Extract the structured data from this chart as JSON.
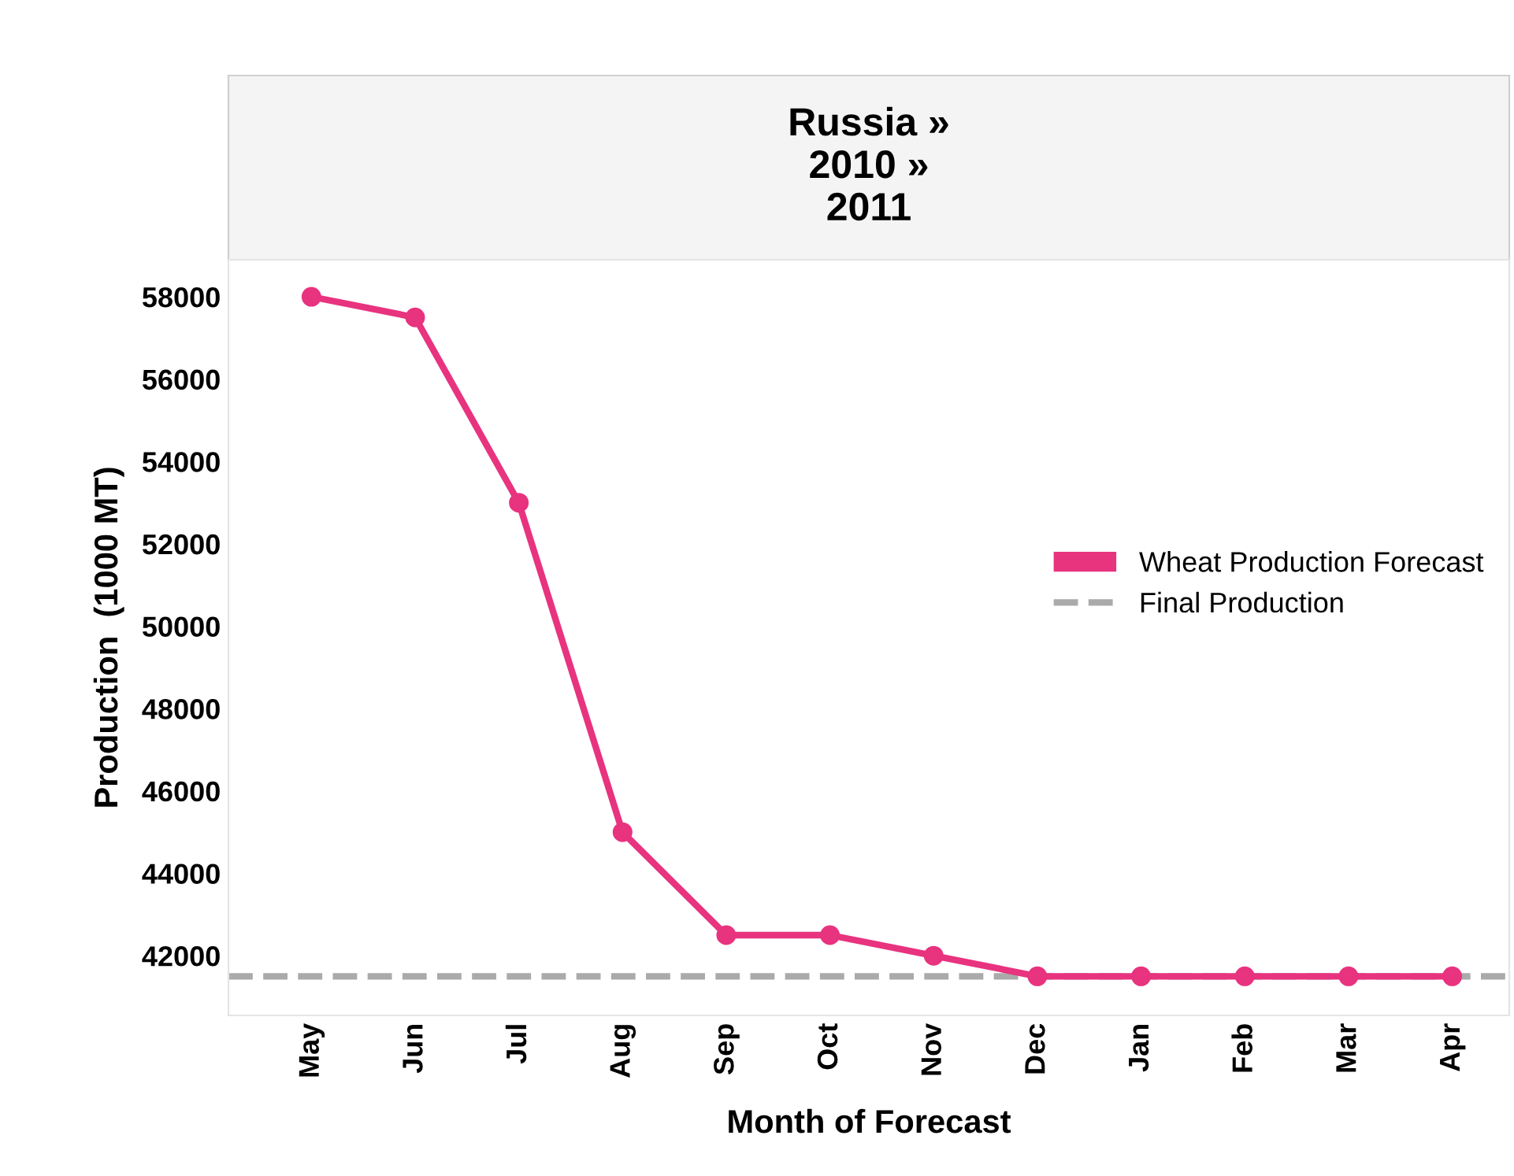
{
  "chart_data": {
    "type": "line",
    "title": "Russia »\n2010 »\n2011",
    "xlabel": "Month of Forecast",
    "ylabel": "Production  (1000 MT)",
    "categories": [
      "May",
      "Jun",
      "Jul",
      "Aug",
      "Sep",
      "Oct",
      "Nov",
      "Dec",
      "Jan",
      "Feb",
      "Mar",
      "Apr"
    ],
    "series": [
      {
        "name": "Wheat Production Forecast",
        "color": "#e8337f",
        "values": [
          58000,
          57500,
          53000,
          45000,
          42500,
          42500,
          42000,
          41500,
          41500,
          41500,
          41500,
          41500
        ]
      }
    ],
    "ref_lines": [
      {
        "axis": "y",
        "value": 41500,
        "label": "Final Production",
        "color": "#aaaaaa",
        "line_style": "dashed"
      }
    ],
    "ylim": [
      40550,
      58900
    ],
    "yticks": [
      42000,
      44000,
      46000,
      48000,
      50000,
      52000,
      54000,
      56000,
      58000
    ],
    "marker": "circle",
    "line_style": "solid",
    "legend": "right",
    "grid": false
  }
}
